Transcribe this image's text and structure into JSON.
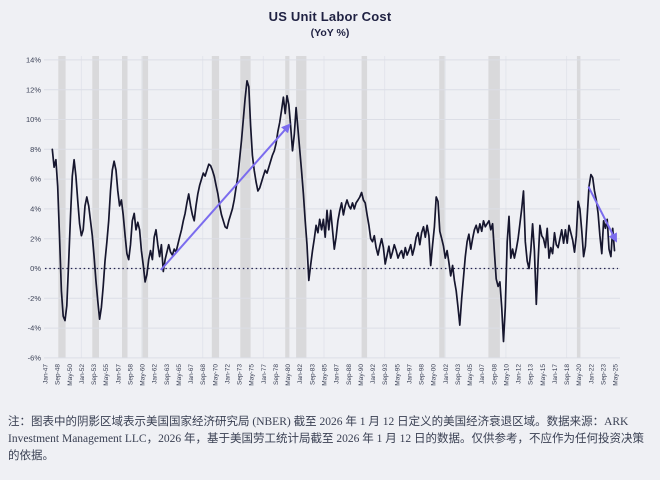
{
  "page": {
    "title": "US Unit Labor Cost",
    "subtitle": "(YoY %)"
  },
  "chart_data": {
    "type": "line",
    "title": "US Unit Labor Cost",
    "subtitle": "(YoY %)",
    "xlabel": "",
    "ylabel": "",
    "ylim": [
      -6,
      14
    ],
    "grid": true,
    "legend": "none",
    "y_ticks": [
      "14%",
      "12%",
      "10%",
      "8%",
      "6%",
      "4%",
      "2%",
      "0%",
      "-2%",
      "-4%",
      "-6%"
    ],
    "x_labels": [
      "Jan-47",
      "Sep-48",
      "May-50",
      "Jan-52",
      "Sep-53",
      "May-55",
      "Jan-57",
      "Sep-58",
      "May-60",
      "Jan-62",
      "Sep-63",
      "May-65",
      "Jan-67",
      "Sep-68",
      "May-70",
      "Jan-72",
      "Sep-73",
      "May-75",
      "Jan-77",
      "Sep-78",
      "May-80",
      "Jan-82",
      "Sep-83",
      "May-85",
      "Jan-87",
      "Sep-88",
      "May-90",
      "Jan-92",
      "Sep-93",
      "May-95",
      "Jan-97",
      "Sep-98",
      "May-00",
      "Jan-02",
      "Sep-03",
      "May-05",
      "Jan-07",
      "Sep-08",
      "May-10",
      "Jan-12",
      "Sep-13",
      "May-15",
      "Jan-17",
      "Sep-18",
      "May-20",
      "Jan-22",
      "Sep-23",
      "May-25"
    ],
    "x_label_interval_months": 20,
    "series": [
      {
        "name": "US Unit Labor Cost YoY %",
        "frequency": "quarterly",
        "start": "1948-Q1",
        "end": "2025-Q2",
        "values": [
          8.0,
          6.8,
          7.3,
          5.5,
          2.0,
          -1.5,
          -3.2,
          -3.5,
          -2.5,
          0.5,
          3.5,
          6.2,
          7.3,
          6.2,
          4.5,
          3.0,
          2.2,
          2.6,
          4.2,
          4.8,
          4.2,
          3.2,
          2.2,
          0.8,
          -0.8,
          -2.2,
          -3.4,
          -2.6,
          -1.2,
          0.5,
          1.8,
          3.2,
          5.2,
          6.6,
          7.2,
          6.6,
          5.2,
          4.2,
          4.6,
          3.6,
          2.2,
          1.0,
          0.6,
          1.6,
          3.2,
          3.7,
          2.6,
          3.1,
          2.6,
          1.2,
          0.2,
          -0.9,
          -0.4,
          0.6,
          1.2,
          0.6,
          2.1,
          2.6,
          1.6,
          0.8,
          1.6,
          -0.2,
          0.6,
          1.1,
          1.6,
          1.1,
          0.9,
          1.3,
          1.1,
          1.6,
          2.1,
          2.6,
          3.2,
          3.7,
          4.4,
          5.0,
          4.2,
          3.6,
          3.2,
          4.2,
          5.0,
          5.6,
          6.0,
          6.4,
          6.2,
          6.6,
          7.0,
          6.9,
          6.6,
          6.2,
          5.6,
          5.0,
          4.2,
          3.6,
          3.2,
          2.8,
          2.7,
          3.2,
          3.6,
          4.0,
          4.6,
          5.4,
          6.2,
          7.4,
          8.6,
          10.0,
          11.4,
          12.6,
          12.2,
          9.6,
          7.6,
          6.6,
          5.8,
          5.2,
          5.4,
          5.8,
          6.2,
          6.6,
          6.4,
          6.8,
          7.2,
          7.6,
          7.9,
          8.4,
          9.2,
          9.8,
          10.6,
          11.5,
          10.4,
          11.6,
          11.0,
          9.6,
          7.9,
          9.0,
          10.8,
          9.4,
          8.0,
          6.6,
          5.0,
          3.2,
          1.6,
          -0.8,
          0.2,
          1.2,
          2.0,
          2.9,
          2.4,
          3.3,
          2.6,
          3.3,
          2.1,
          3.9,
          2.6,
          3.9,
          2.6,
          1.3,
          2.1,
          3.2,
          3.9,
          4.4,
          3.6,
          4.2,
          4.6,
          4.2,
          4.0,
          4.4,
          4.0,
          4.4,
          4.6,
          4.8,
          5.1,
          4.6,
          4.4,
          3.6,
          2.9,
          2.0,
          1.8,
          2.2,
          1.4,
          0.9,
          1.5,
          2.0,
          1.4,
          0.3,
          0.9,
          1.5,
          0.7,
          1.1,
          1.6,
          1.2,
          0.7,
          1.0,
          1.2,
          0.7,
          1.4,
          0.9,
          1.2,
          1.6,
          0.9,
          1.4,
          2.1,
          2.4,
          1.6,
          2.4,
          2.8,
          2.1,
          2.9,
          2.2,
          0.2,
          1.6,
          2.8,
          4.8,
          4.5,
          2.5,
          2.0,
          1.5,
          0.7,
          1.2,
          0.4,
          -0.5,
          0.2,
          -0.8,
          -1.5,
          -2.6,
          -3.8,
          -2.0,
          -0.6,
          0.8,
          1.8,
          2.3,
          1.3,
          2.0,
          2.6,
          2.9,
          2.4,
          3.0,
          2.5,
          3.2,
          2.8,
          3.0,
          3.2,
          2.6,
          3.0,
          1.1,
          -0.7,
          -1.2,
          -0.9,
          -2.6,
          -4.9,
          -2.6,
          1.8,
          3.5,
          0.7,
          1.3,
          0.7,
          1.3,
          2.0,
          3.0,
          4.0,
          5.2,
          1.8,
          0.5,
          0.0,
          1.2,
          3.0,
          1.2,
          -2.4,
          0.5,
          2.9,
          2.2,
          2.0,
          1.4,
          2.7,
          0.7,
          1.4,
          1.0,
          2.4,
          1.6,
          1.4,
          2.0,
          2.6,
          1.7,
          2.6,
          1.7,
          2.9,
          2.4,
          1.9,
          1.1,
          2.2,
          4.5,
          4.0,
          2.5,
          0.8,
          1.5,
          3.5,
          5.5,
          6.3,
          6.1,
          5.2,
          4.6,
          3.7,
          2.2,
          1.0,
          3.2,
          2.7,
          3.3,
          1.3,
          0.8,
          2.7,
          1.2
        ]
      }
    ],
    "recession_bands_months_from_jan1947": [
      [
        22,
        34
      ],
      [
        78,
        89
      ],
      [
        127,
        136
      ],
      [
        159,
        170
      ],
      [
        275,
        287
      ],
      [
        322,
        339
      ],
      [
        396,
        403
      ],
      [
        414,
        431
      ],
      [
        522,
        531
      ],
      [
        650,
        659
      ],
      [
        731,
        750
      ],
      [
        877,
        880
      ]
    ],
    "trend_arrows": [
      {
        "from_month": 191,
        "from_value": -0.1,
        "to_month": 402,
        "to_value": 9.6
      },
      {
        "from_month": 896,
        "from_value": 5.5,
        "to_month": 941,
        "to_value": 1.9
      }
    ],
    "zero_line_dotted": true,
    "colors": {
      "line": "#16162e",
      "trend": "#7b6cee",
      "band": "#d9d9db",
      "grid": "#dcdee6",
      "grid_vertical": "#e3e5ec",
      "zero": "#23234d",
      "background": "#eff0f4",
      "title_text": "#1f2142",
      "tick_text": "#3c4257"
    }
  },
  "note": {
    "text": "注：图表中的阴影区域表示美国国家经济研究局 (NBER) 截至 2026 年 1 月 12 日定义的美国经济衰退区域。数据来源：ARK Investment Management LLC，2026 年，基于美国劳工统计局截至 2026 年 1 月 12 日的数据。仅供参考，不应作为任何投资决策的依据。"
  }
}
